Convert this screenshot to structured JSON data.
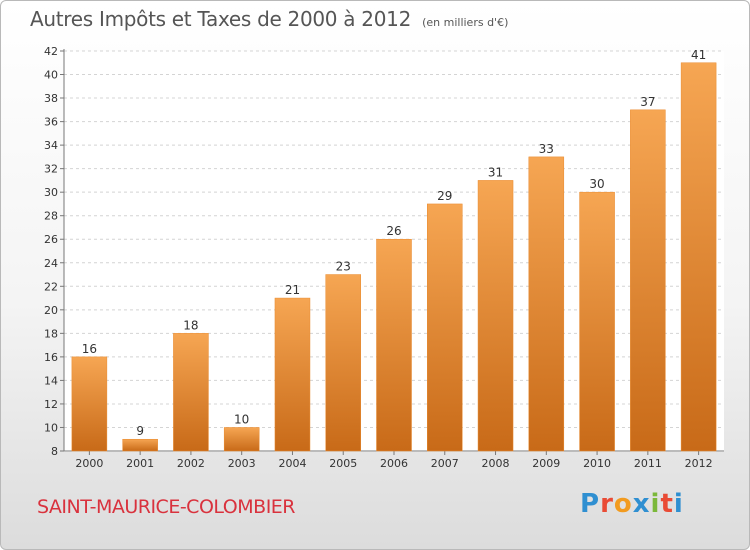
{
  "title": "Autres Impôts et Taxes de 2000 à 2012",
  "unit_note": "(en milliers d'€)",
  "commune": "SAINT-MAURICE-COLOMBIER",
  "logo": {
    "letters": [
      "P",
      "r",
      "o",
      "x",
      "i",
      "t",
      "i"
    ],
    "colors": [
      "#2f8fd1",
      "#e94b35",
      "#f29b1f",
      "#2f8fd1",
      "#7bb83a",
      "#e94b35",
      "#2f8fd1"
    ]
  },
  "colors": {
    "bar_light": "#f6a653",
    "bar_dark": "#c86a18",
    "title": "#555555",
    "commune": "#d9323d"
  },
  "chart_data": {
    "type": "bar",
    "categories": [
      "2000",
      "2001",
      "2002",
      "2003",
      "2004",
      "2005",
      "2006",
      "2007",
      "2008",
      "2009",
      "2010",
      "2011",
      "2012"
    ],
    "values": [
      16,
      9,
      18,
      10,
      21,
      23,
      26,
      29,
      31,
      33,
      30,
      37,
      41
    ],
    "title": "Autres Impôts et Taxes de 2000 à 2012",
    "ylim": [
      8,
      42
    ],
    "yticks": [
      8,
      10,
      12,
      14,
      16,
      18,
      20,
      22,
      24,
      26,
      28,
      30,
      32,
      34,
      36,
      38,
      40,
      42
    ],
    "grid": true
  }
}
